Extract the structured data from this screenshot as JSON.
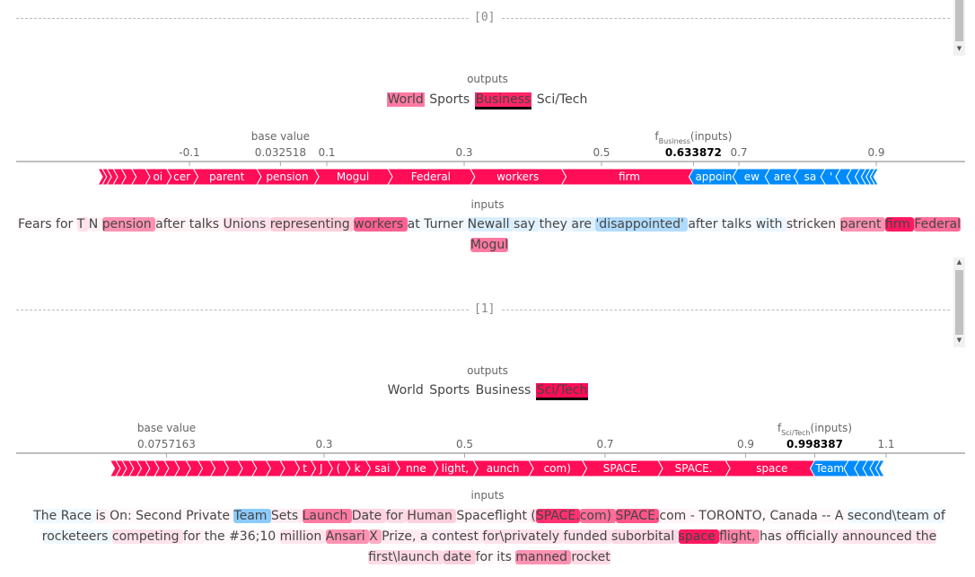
{
  "samples": [
    {
      "index": "[0]",
      "outputs_label": "outputs",
      "classes": [
        {
          "name": "World",
          "bg": "rgba(255,13,87,0.55)",
          "underline": false
        },
        {
          "name": "Sports",
          "bg": "transparent",
          "underline": false
        },
        {
          "name": "Business",
          "bg": "rgba(255,13,87,0.9)",
          "underline": true
        },
        {
          "name": "Sci/Tech",
          "bg": "transparent",
          "underline": false
        }
      ],
      "force": {
        "base_label": "base value",
        "base_value": 0.032518,
        "f_label": "f",
        "f_sub": "Business",
        "f_suffix": "(inputs)",
        "f_value": 0.633872,
        "ticks": [
          -0.1,
          0.1,
          0.3,
          0.5,
          0.7,
          0.9
        ],
        "xlim": [
          -0.1,
          0.9
        ],
        "positive": [
          {
            "label": "firm",
            "v": 0.192
          },
          {
            "label": "workers",
            "v": 0.133
          },
          {
            "label": "Federal",
            "v": 0.12
          },
          {
            "label": "Mogul",
            "v": 0.107
          },
          {
            "label": "pension",
            "v": 0.084
          },
          {
            "label": "parent",
            "v": 0.092
          },
          {
            "label": "cer",
            "v": 0.039
          },
          {
            "label": "oi",
            "v": 0.031
          },
          {
            "label": "",
            "v": 0.02
          },
          {
            "label": "",
            "v": 0.015
          },
          {
            "label": "",
            "v": 0.012
          },
          {
            "label": "",
            "v": 0.009
          },
          {
            "label": "",
            "v": 0.007
          },
          {
            "label": "",
            "v": 0.006
          }
        ],
        "negative": [
          {
            "label": "appoin",
            "v": 0.064
          },
          {
            "label": "ew",
            "v": 0.047
          },
          {
            "label": "are",
            "v": 0.042
          },
          {
            "label": "sa",
            "v": 0.039
          },
          {
            "label": "'",
            "v": 0.022
          },
          {
            "label": "",
            "v": 0.016
          },
          {
            "label": "",
            "v": 0.012
          },
          {
            "label": "",
            "v": 0.009
          },
          {
            "label": "",
            "v": 0.007
          },
          {
            "label": "",
            "v": 0.006
          },
          {
            "label": "",
            "v": 0.005
          }
        ]
      },
      "inputs_label": "inputs",
      "tokens": [
        {
          "t": "Fears ",
          "c": "rgba(255,13,87,0.02)"
        },
        {
          "t": "for ",
          "c": "rgba(255,13,87,0.02)"
        },
        {
          "t": "T ",
          "c": "rgba(255,13,87,0.12)"
        },
        {
          "t": "N ",
          "c": "rgba(255,13,87,0.05)"
        },
        {
          "t": "pension ",
          "c": "rgba(255,13,87,0.45)"
        },
        {
          "t": "after ",
          "c": "rgba(255,13,87,0.05)"
        },
        {
          "t": "talks ",
          "c": "rgba(255,13,87,0.05)"
        },
        {
          "t": "Unions ",
          "c": "rgba(255,13,87,0.12)"
        },
        {
          "t": "representing ",
          "c": "rgba(255,13,87,0.2)"
        },
        {
          "t": "workers ",
          "c": "rgba(255,13,87,0.65)"
        },
        {
          "t": "at ",
          "c": "rgba(0,139,251,0.05)"
        },
        {
          "t": "Turner ",
          "c": "rgba(0,139,251,0.05)"
        },
        {
          "t": "Newall ",
          "c": "rgba(0,139,251,0.15)"
        },
        {
          "t": "say ",
          "c": "rgba(0,139,251,0.12)"
        },
        {
          "t": "they ",
          "c": "rgba(0,139,251,0.08)"
        },
        {
          "t": "are ",
          "c": "rgba(0,139,251,0.12)"
        },
        {
          "t": "'disappointed' ",
          "c": "rgba(0,139,251,0.3)"
        },
        {
          "t": "after ",
          "c": "rgba(0,139,251,0.05)"
        },
        {
          "t": "talks ",
          "c": "rgba(0,139,251,0.04)"
        },
        {
          "t": "with ",
          "c": "rgba(0,139,251,0.08)"
        },
        {
          "t": "stricken ",
          "c": "rgba(255,13,87,0.03)"
        },
        {
          "t": "parent ",
          "c": "rgba(255,13,87,0.45)"
        },
        {
          "t": "firm ",
          "c": "rgba(255,13,87,0.95)"
        },
        {
          "t": "Federal ",
          "c": "rgba(255,13,87,0.6)"
        },
        {
          "t": "Mogul",
          "c": "rgba(255,13,87,0.55)"
        }
      ]
    },
    {
      "index": "[1]",
      "outputs_label": "outputs",
      "classes": [
        {
          "name": "World",
          "bg": "transparent",
          "underline": false
        },
        {
          "name": "Sports",
          "bg": "transparent",
          "underline": false
        },
        {
          "name": "Business",
          "bg": "transparent",
          "underline": false
        },
        {
          "name": "Sci/Tech",
          "bg": "rgba(255,13,87,1)",
          "underline": true
        }
      ],
      "force": {
        "base_label": "base value",
        "base_value": 0.0757163,
        "f_label": "f",
        "f_sub": "Sci/Tech",
        "f_suffix": "(inputs)",
        "f_value": 0.998387,
        "ticks": [
          0.3,
          0.5,
          0.7,
          0.9,
          1.1
        ],
        "xlim": [
          0.1,
          1.1
        ],
        "positive": [
          {
            "label": "space",
            "v": 0.127
          },
          {
            "label": "SPACE.",
            "v": 0.096
          },
          {
            "label": "SPACE.",
            "v": 0.108
          },
          {
            "label": "com)",
            "v": 0.076
          },
          {
            "label": "aunch",
            "v": 0.079
          },
          {
            "label": "light,",
            "v": 0.057
          },
          {
            "label": "nne",
            "v": 0.054
          },
          {
            "label": "sai",
            "v": 0.042
          },
          {
            "label": "k",
            "v": 0.029
          },
          {
            "label": "(",
            "v": 0.025
          },
          {
            "label": "J",
            "v": 0.024
          },
          {
            "label": "t",
            "v": 0.023
          },
          {
            "label": "",
            "v": 0.021
          },
          {
            "label": "",
            "v": 0.02
          },
          {
            "label": "",
            "v": 0.02
          },
          {
            "label": "",
            "v": 0.02
          },
          {
            "label": "",
            "v": 0.02
          },
          {
            "label": "",
            "v": 0.019
          },
          {
            "label": "",
            "v": 0.018
          },
          {
            "label": "",
            "v": 0.017
          },
          {
            "label": "",
            "v": 0.016
          },
          {
            "label": "",
            "v": 0.015
          },
          {
            "label": "",
            "v": 0.014
          },
          {
            "label": "",
            "v": 0.013
          },
          {
            "label": "",
            "v": 0.012
          },
          {
            "label": "",
            "v": 0.011
          },
          {
            "label": "",
            "v": 0.01
          },
          {
            "label": "",
            "v": 0.009
          },
          {
            "label": "",
            "v": 0.008
          }
        ],
        "negative": [
          {
            "label": "Team",
            "v": 0.048
          },
          {
            "label": "",
            "v": 0.015
          },
          {
            "label": "",
            "v": 0.012
          },
          {
            "label": "",
            "v": 0.01
          },
          {
            "label": "",
            "v": 0.008
          },
          {
            "label": "",
            "v": 0.006
          }
        ]
      },
      "inputs_label": "inputs",
      "tokens": [
        {
          "t": "The ",
          "c": "rgba(0,139,251,0.06)"
        },
        {
          "t": "Race ",
          "c": "rgba(0,139,251,0.06)"
        },
        {
          "t": "is ",
          "c": "rgba(255,13,87,0.06)"
        },
        {
          "t": "On: ",
          "c": "rgba(255,13,87,0.03)"
        },
        {
          "t": "Second ",
          "c": "rgba(255,13,87,0.03)"
        },
        {
          "t": "Private ",
          "c": "rgba(255,13,87,0.03)"
        },
        {
          "t": "Team ",
          "c": "rgba(0,139,251,0.45)"
        },
        {
          "t": "Sets ",
          "c": "rgba(255,13,87,0.08)"
        },
        {
          "t": "Launch ",
          "c": "rgba(255,13,87,0.55)"
        },
        {
          "t": "Date ",
          "c": "rgba(255,13,87,0.18)"
        },
        {
          "t": "for ",
          "c": "rgba(255,13,87,0.15)"
        },
        {
          "t": "Human ",
          "c": "rgba(255,13,87,0.2)"
        },
        {
          "t": "Spaceflight ",
          "c": "rgba(255,13,87,0.05)"
        },
        {
          "t": "(",
          "c": "rgba(255,13,87,0.15)"
        },
        {
          "t": "SPACE.",
          "c": "rgba(255,13,87,0.85)"
        },
        {
          "t": "com) ",
          "c": "rgba(255,13,87,0.6)"
        },
        {
          "t": "SPACE.",
          "c": "rgba(255,13,87,0.7)"
        },
        {
          "t": "com ",
          "c": "rgba(255,13,87,0.05)"
        },
        {
          "t": "- ",
          "c": "rgba(255,13,87,0.03)"
        },
        {
          "t": "TORONTO, ",
          "c": "rgba(255,13,87,0.03)"
        },
        {
          "t": "Canada ",
          "c": "rgba(255,13,87,0.03)"
        },
        {
          "t": "-- ",
          "c": "rgba(255,13,87,0.03)"
        },
        {
          "t": "A ",
          "c": "rgba(255,13,87,0.03)"
        },
        {
          "t": "second\\team ",
          "c": "rgba(0,139,251,0.06)"
        },
        {
          "t": "of ",
          "c": "rgba(0,139,251,0.06)"
        },
        {
          "t": "rocketeers ",
          "c": "rgba(0,139,251,0.06)"
        },
        {
          "t": "competing ",
          "c": "rgba(255,13,87,0.12)"
        },
        {
          "t": "for ",
          "c": "rgba(255,13,87,0.06)"
        },
        {
          "t": "the ",
          "c": "rgba(255,13,87,0.03)"
        },
        {
          "t": "#36;10 ",
          "c": "rgba(255,13,87,0.03)"
        },
        {
          "t": "million ",
          "c": "rgba(255,13,87,0.1)"
        },
        {
          "t": "Ansari ",
          "c": "rgba(255,13,87,0.45)"
        },
        {
          "t": "X ",
          "c": "rgba(255,13,87,0.35)"
        },
        {
          "t": "Prize, ",
          "c": "rgba(255,13,87,0.08)"
        },
        {
          "t": "a ",
          "c": "rgba(255,13,87,0.08)"
        },
        {
          "t": "contest ",
          "c": "rgba(255,13,87,0.08)"
        },
        {
          "t": "for\\privately ",
          "c": "rgba(255,13,87,0.12)"
        },
        {
          "t": "funded ",
          "c": "rgba(255,13,87,0.12)"
        },
        {
          "t": "suborbital ",
          "c": "rgba(255,13,87,0.15)"
        },
        {
          "t": "space ",
          "c": "rgba(255,13,87,0.95)"
        },
        {
          "t": "flight, ",
          "c": "rgba(255,13,87,0.5)"
        },
        {
          "t": "has ",
          "c": "rgba(255,13,87,0.05)"
        },
        {
          "t": "officially ",
          "c": "rgba(255,13,87,0.08)"
        },
        {
          "t": "announced ",
          "c": "rgba(255,13,87,0.1)"
        },
        {
          "t": "the ",
          "c": "rgba(255,13,87,0.12)"
        },
        {
          "t": "first\\launch ",
          "c": "rgba(255,13,87,0.15)"
        },
        {
          "t": "date ",
          "c": "rgba(255,13,87,0.2)"
        },
        {
          "t": "for ",
          "c": "rgba(255,13,87,0.03)"
        },
        {
          "t": "its ",
          "c": "rgba(255,13,87,0.03)"
        },
        {
          "t": "manned ",
          "c": "rgba(255,13,87,0.45)"
        },
        {
          "t": "rocket",
          "c": "rgba(255,13,87,0.15)"
        }
      ]
    }
  ],
  "colors": {
    "positive": "#ff0d57",
    "negative": "#008bfb"
  }
}
